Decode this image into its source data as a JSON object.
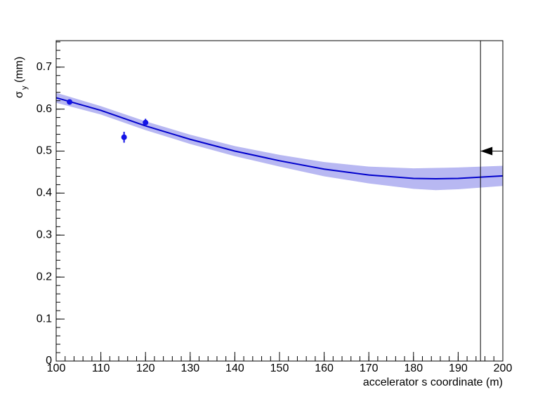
{
  "chart_data": {
    "type": "line",
    "xlabel": "accelerator s coordinate (m)",
    "ylabel": {
      "symbol": "σ",
      "sub": "y",
      "unit": "(mm)"
    },
    "xlim": [
      100,
      200
    ],
    "ylim": [
      0,
      0.763
    ],
    "xticks": [
      100,
      110,
      120,
      130,
      140,
      150,
      160,
      170,
      180,
      190,
      200
    ],
    "yticks": [
      0,
      0.1,
      0.2,
      0.3,
      0.4,
      0.5,
      0.6,
      0.7
    ],
    "minor_divisions": 5,
    "fit": {
      "color": "#0000cc",
      "band_color": "#b8b8f2",
      "x": [
        100,
        110,
        120,
        130,
        140,
        150,
        160,
        170,
        180,
        185,
        190,
        200
      ],
      "values": [
        0.627,
        0.597,
        0.56,
        0.528,
        0.5,
        0.477,
        0.457,
        0.443,
        0.435,
        0.434,
        0.435,
        0.441
      ],
      "lower": [
        0.615,
        0.587,
        0.55,
        0.517,
        0.488,
        0.463,
        0.44,
        0.423,
        0.41,
        0.407,
        0.409,
        0.417
      ],
      "upper": [
        0.639,
        0.607,
        0.571,
        0.539,
        0.512,
        0.491,
        0.474,
        0.463,
        0.459,
        0.46,
        0.461,
        0.465
      ]
    },
    "points": {
      "color": "#1414e6",
      "x": [
        103,
        115.2,
        120
      ],
      "values": [
        0.617,
        0.533,
        0.568
      ],
      "errors": [
        0.005,
        0.013,
        0.009
      ]
    },
    "marker": {
      "x": 195,
      "y": 0.5
    }
  }
}
